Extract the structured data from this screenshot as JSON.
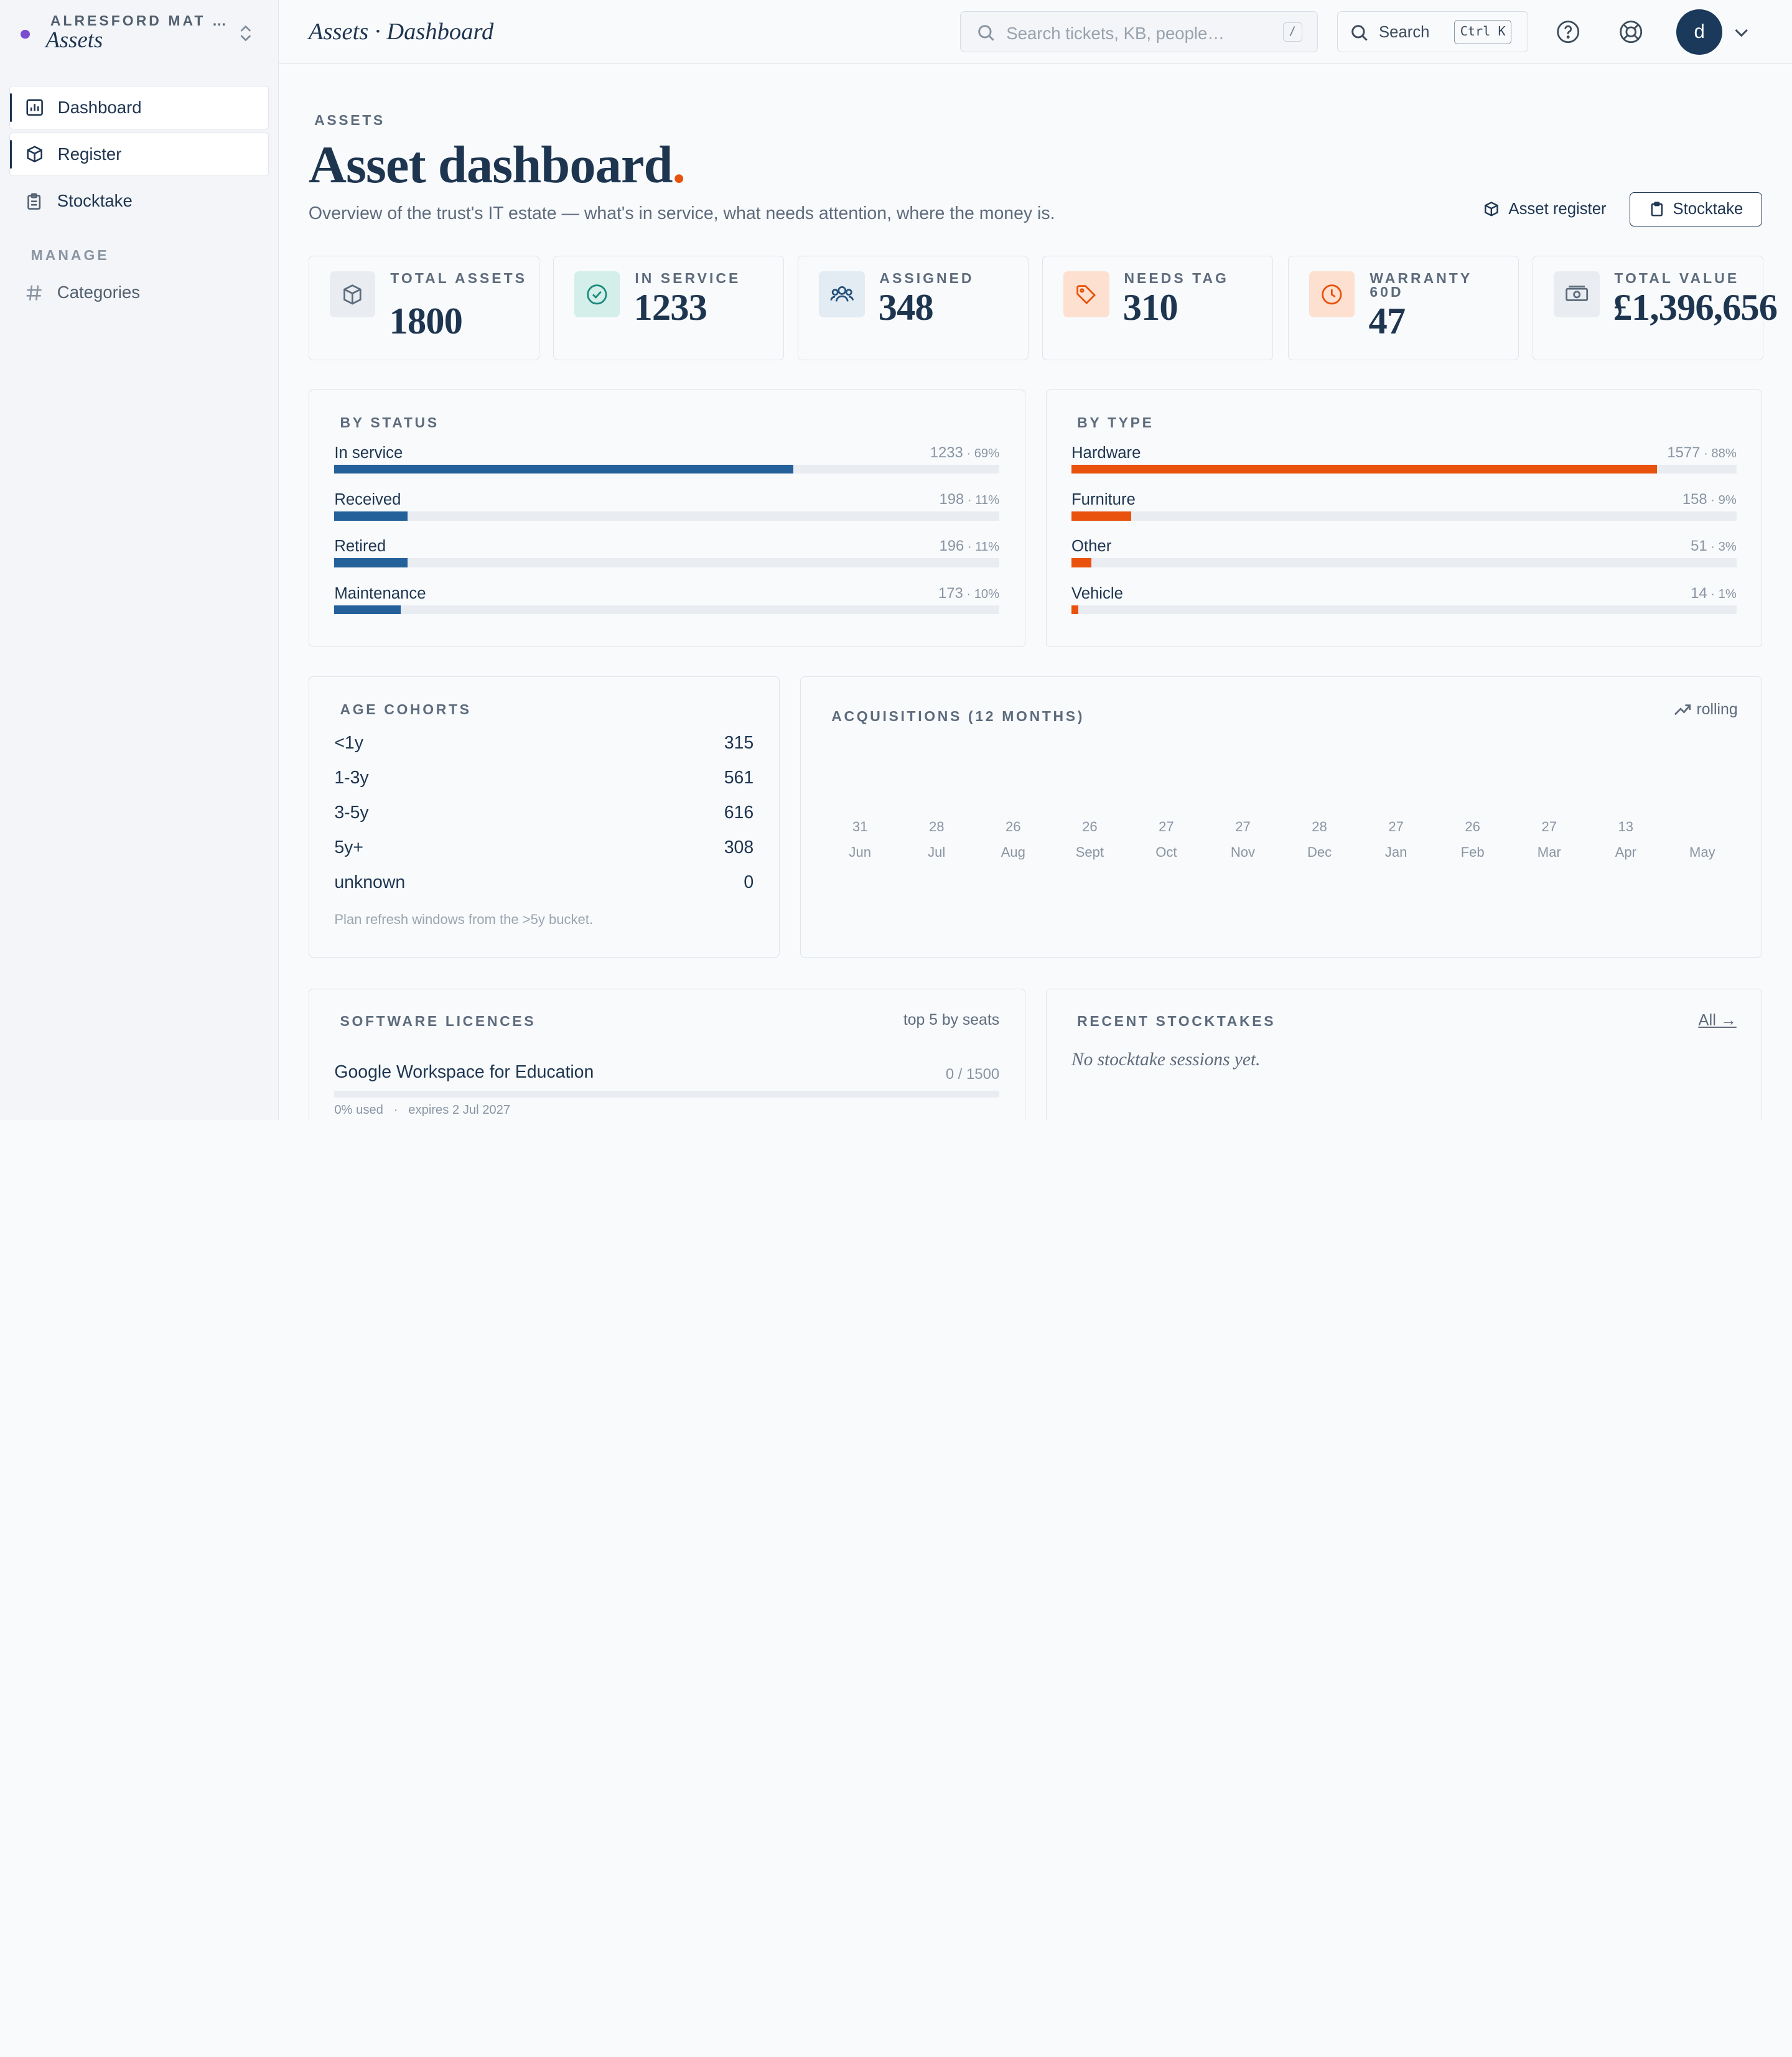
{
  "sidebar": {
    "org": "ALRESFORD MAT …",
    "app_name": "Assets",
    "nav": [
      {
        "label": "Dashboard",
        "icon": "chart-icon",
        "active": true
      },
      {
        "label": "Register",
        "icon": "box-icon",
        "active": false
      },
      {
        "label": "Stocktake",
        "icon": "clipboard-icon",
        "active": false
      }
    ],
    "section_label": "MANAGE",
    "manage_items": [
      {
        "label": "Categories",
        "icon": "hash-icon"
      }
    ]
  },
  "topbar": {
    "breadcrumb": "Assets · Dashboard",
    "search_placeholder": "Search tickets, KB, people…",
    "search_shortcut": "/",
    "search_button": "Search",
    "search_button_shortcut": "Ctrl K",
    "avatar_initial": "d"
  },
  "header": {
    "eyebrow": "ASSETS",
    "title": "Asset dashboard",
    "title_dot": ".",
    "subtitle": "Overview of the trust's IT estate — what's in service, what needs attention, where the money is.",
    "register_button": "Asset register",
    "stocktake_button": "Stocktake"
  },
  "kpis": [
    {
      "label": "TOTAL ASSETS",
      "value": "1800",
      "icon": "cube-icon",
      "color": "#e9edf2",
      "icon_color": "#5d6b7c"
    },
    {
      "label": "IN SERVICE",
      "value": "1233",
      "icon": "check-circle-icon",
      "color": "#d4eeea",
      "icon_color": "#1a8a7c"
    },
    {
      "label": "ASSIGNED",
      "value": "348",
      "icon": "users-icon",
      "color": "#e3ebf3",
      "icon_color": "#24507a"
    },
    {
      "label": "NEEDS TAG",
      "value": "310",
      "icon": "tag-icon",
      "color": "#fde0cf",
      "icon_color": "#e8520d"
    },
    {
      "label": "WARRANTY 60D",
      "value": "47",
      "icon": "clock-icon",
      "color": "#fde0cf",
      "icon_color": "#e8520d"
    },
    {
      "label": "TOTAL VALUE",
      "value": "£1,396,656",
      "icon": "money-icon",
      "color": "#e9edf2",
      "icon_color": "#5d6b7c"
    }
  ],
  "by_status": {
    "title": "BY STATUS",
    "color": "#24609a",
    "rows": [
      {
        "name": "In service",
        "count": "1233",
        "pct": "69%",
        "fraction": 0.69
      },
      {
        "name": "Received",
        "count": "198",
        "pct": "11%",
        "fraction": 0.11
      },
      {
        "name": "Retired",
        "count": "196",
        "pct": "11%",
        "fraction": 0.11
      },
      {
        "name": "Maintenance",
        "count": "173",
        "pct": "10%",
        "fraction": 0.1
      }
    ]
  },
  "by_type": {
    "title": "BY TYPE",
    "color": "#e8520d",
    "rows": [
      {
        "name": "Hardware",
        "count": "1577",
        "pct": "88%",
        "fraction": 0.88
      },
      {
        "name": "Furniture",
        "count": "158",
        "pct": "9%",
        "fraction": 0.09
      },
      {
        "name": "Other",
        "count": "51",
        "pct": "3%",
        "fraction": 0.03
      },
      {
        "name": "Vehicle",
        "count": "14",
        "pct": "1%",
        "fraction": 0.01
      }
    ]
  },
  "age_cohorts": {
    "title": "AGE COHORTS",
    "rows": [
      {
        "label": "<1y",
        "value": "315"
      },
      {
        "label": "1-3y",
        "value": "561"
      },
      {
        "label": "3-5y",
        "value": "616"
      },
      {
        "label": "5y+",
        "value": "308"
      },
      {
        "label": "unknown",
        "value": "0"
      }
    ],
    "note": "Plan refresh windows from the >5y bucket."
  },
  "acquisitions": {
    "title": "ACQUISITIONS (12 MONTHS)",
    "rolling_label": "rolling",
    "months": [
      {
        "month": "Jun",
        "count": "31"
      },
      {
        "month": "Jul",
        "count": "28"
      },
      {
        "month": "Aug",
        "count": "26"
      },
      {
        "month": "Sept",
        "count": "26"
      },
      {
        "month": "Oct",
        "count": "27"
      },
      {
        "month": "Nov",
        "count": "27"
      },
      {
        "month": "Dec",
        "count": "28"
      },
      {
        "month": "Jan",
        "count": "27"
      },
      {
        "month": "Feb",
        "count": "26"
      },
      {
        "month": "Mar",
        "count": "27"
      },
      {
        "month": "Apr",
        "count": "13"
      },
      {
        "month": "May",
        "count": ""
      }
    ]
  },
  "software": {
    "title": "SOFTWARE LICENCES",
    "subtitle": "top 5 by seats",
    "items": [
      {
        "name": "Google Workspace for Education",
        "usage": "0 / 1500",
        "used": "0% used",
        "sep": "·",
        "expires": "expires 2 Jul 2027"
      }
    ]
  },
  "stocktakes": {
    "title": "RECENT STOCKTAKES",
    "link": "All →",
    "empty": "No stocktake sessions yet."
  }
}
